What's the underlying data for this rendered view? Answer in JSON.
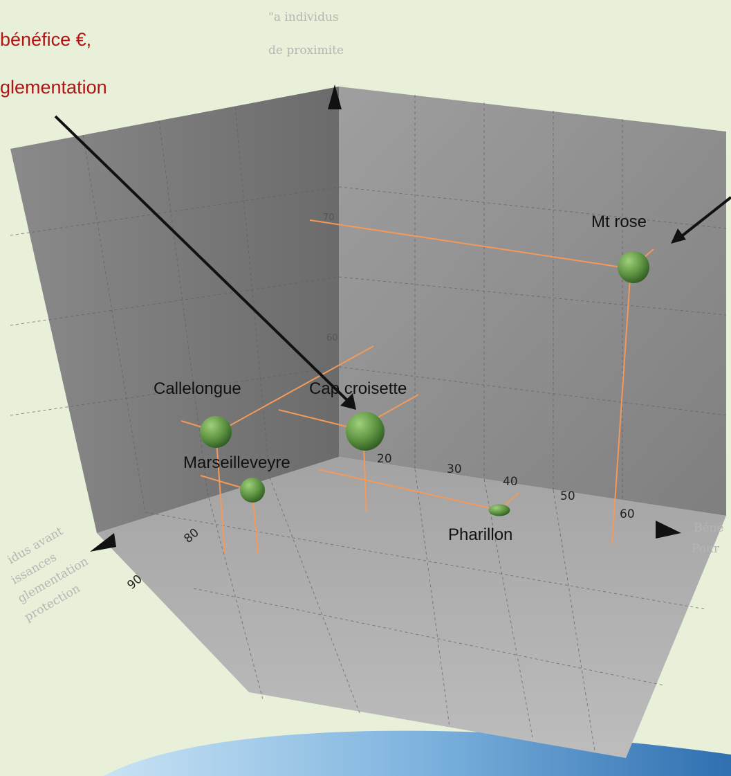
{
  "page": {
    "background": "#e9f0d9"
  },
  "chart_data": {
    "type": "scatter",
    "title": "",
    "annotations": {
      "top_left_red": [
        "bénéfice €,",
        "glementation"
      ],
      "top_axis_label": [
        "\"a individus",
        "de proximite"
      ],
      "right_axis_label": [
        "Béné",
        "Pour"
      ],
      "left_axis_label": [
        "idus avant",
        "issances",
        "glementation",
        "protection"
      ]
    },
    "x_axis_ticks": [
      "20",
      "30",
      "40",
      "50",
      "60"
    ],
    "z_axis_ticks": [
      "70",
      "60"
    ],
    "depth_axis_ticks": [
      "80",
      "90"
    ],
    "points": [
      {
        "name": "Mt rose",
        "x": 62,
        "y": 70,
        "z": 45,
        "size": 3
      },
      {
        "name": "Cap croisette",
        "x": 21,
        "y": 60,
        "z": 80,
        "size": 4
      },
      {
        "name": "Callelongue",
        "x": 5,
        "y": 60,
        "z": 84,
        "size": 3
      },
      {
        "name": "Marseilleveyre",
        "x": 10,
        "y": 55,
        "z": 85,
        "size": 2
      },
      {
        "name": "Pharillon",
        "x": 43,
        "y": 55,
        "z": 66,
        "size": 1.5
      }
    ],
    "colors": {
      "marker": "#5c9140",
      "drop_lines": "#f39a5a",
      "label_red": "#b01515"
    }
  }
}
